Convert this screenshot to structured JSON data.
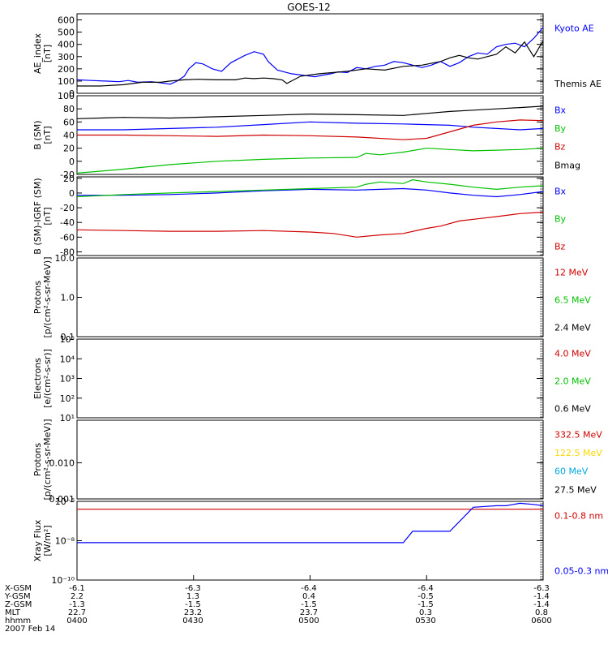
{
  "title": "GOES-12",
  "chart_data": [
    {
      "type": "line",
      "ylabel": "AE_index\n[nT]",
      "ylim": [
        0,
        650
      ],
      "yscale": "linear",
      "yticks": [
        0,
        100,
        200,
        300,
        400,
        500,
        600
      ],
      "ytick_labels": [
        "0",
        "100",
        "200",
        "300",
        "400",
        "500",
        "600"
      ],
      "series": [
        {
          "name": "Kyoto AE",
          "color": "#0000ff",
          "x": [
            0,
            3,
            6,
            9,
            11,
            13,
            16,
            18,
            20,
            21.5,
            23,
            24,
            25.5,
            27,
            29,
            31,
            33,
            36,
            38,
            40,
            41,
            43,
            46,
            48,
            51,
            53,
            54.5,
            56,
            58,
            60,
            62,
            64,
            66,
            68,
            70,
            72,
            74,
            76,
            78,
            80,
            82,
            84,
            86,
            88,
            90,
            92,
            94,
            96,
            98,
            100
          ],
          "y": [
            110,
            105,
            100,
            95,
            105,
            90,
            95,
            85,
            75,
            100,
            140,
            200,
            250,
            240,
            200,
            180,
            250,
            310,
            340,
            320,
            260,
            190,
            160,
            150,
            135,
            150,
            160,
            175,
            170,
            210,
            200,
            220,
            230,
            260,
            250,
            230,
            210,
            230,
            260,
            220,
            250,
            300,
            330,
            320,
            380,
            400,
            410,
            380,
            450,
            540
          ]
        },
        {
          "name": "Themis AE",
          "color": "#000000",
          "x": [
            0,
            5,
            10,
            14,
            18,
            20,
            23,
            26,
            30,
            34,
            36,
            38,
            40,
            42,
            44,
            45,
            46,
            48,
            52,
            55,
            58,
            62,
            66,
            70,
            74,
            78,
            80,
            82,
            84,
            86,
            88,
            90,
            92,
            94,
            96,
            98,
            100
          ],
          "y": [
            60,
            60,
            70,
            90,
            90,
            100,
            110,
            115,
            110,
            110,
            125,
            120,
            125,
            120,
            110,
            80,
            100,
            140,
            160,
            170,
            180,
            200,
            190,
            220,
            230,
            260,
            290,
            310,
            290,
            280,
            300,
            320,
            380,
            330,
            420,
            300,
            430
          ]
        }
      ]
    },
    {
      "type": "line",
      "ylabel": "B (SM)\n[nT]",
      "ylim": [
        -20,
        100
      ],
      "yscale": "linear",
      "yticks": [
        -20,
        0,
        20,
        40,
        60,
        80,
        100
      ],
      "ytick_labels": [
        "-20",
        "0",
        "20",
        "40",
        "60",
        "80",
        "100"
      ],
      "series": [
        {
          "name": "Bx",
          "color": "#0000ff",
          "x": [
            0,
            10,
            20,
            30,
            40,
            50,
            60,
            70,
            80,
            85,
            90,
            95,
            100
          ],
          "y": [
            48,
            48,
            50,
            52,
            56,
            60,
            58,
            57,
            55,
            52,
            50,
            48,
            50
          ]
        },
        {
          "name": "By",
          "color": "#00c000",
          "x": [
            0,
            5,
            10,
            20,
            30,
            40,
            50,
            60,
            62,
            65,
            70,
            75,
            80,
            85,
            90,
            95,
            100
          ],
          "y": [
            -18,
            -15,
            -12,
            -5,
            0,
            3,
            5,
            6,
            12,
            10,
            14,
            20,
            18,
            16,
            17,
            18,
            20
          ]
        },
        {
          "name": "Bz",
          "color": "#d00000",
          "x": [
            0,
            10,
            20,
            30,
            40,
            50,
            60,
            70,
            75,
            80,
            85,
            90,
            95,
            100
          ],
          "y": [
            40,
            40,
            39,
            38,
            40,
            39,
            37,
            33,
            35,
            45,
            55,
            60,
            63,
            62
          ]
        },
        {
          "name": "Bmag",
          "color": "#000000",
          "x": [
            0,
            10,
            20,
            30,
            40,
            50,
            60,
            70,
            75,
            80,
            85,
            90,
            95,
            100
          ],
          "y": [
            65,
            67,
            66,
            68,
            70,
            72,
            71,
            70,
            73,
            76,
            78,
            80,
            82,
            84
          ]
        }
      ]
    },
    {
      "type": "line",
      "ylabel": "B (SM)-IGRF (SM)\n[nT]",
      "ylim": [
        -85,
        22
      ],
      "yscale": "linear",
      "yticks": [
        -80,
        -60,
        -40,
        -20,
        0,
        20
      ],
      "ytick_labels": [
        "-80",
        "-60",
        "-40",
        "-20",
        "0",
        "20"
      ],
      "series": [
        {
          "name": "Bx",
          "color": "#0000ff",
          "x": [
            0,
            10,
            20,
            30,
            40,
            50,
            60,
            65,
            70,
            75,
            80,
            85,
            90,
            95,
            100
          ],
          "y": [
            -3,
            -3,
            -2,
            0,
            3,
            5,
            4,
            5,
            6,
            4,
            0,
            -3,
            -5,
            -2,
            2
          ]
        },
        {
          "name": "By",
          "color": "#00c000",
          "x": [
            0,
            10,
            20,
            30,
            40,
            50,
            60,
            62,
            65,
            70,
            72,
            75,
            80,
            85,
            90,
            95,
            100
          ],
          "y": [
            -5,
            -2,
            0,
            2,
            4,
            6,
            8,
            12,
            15,
            13,
            18,
            15,
            12,
            8,
            5,
            8,
            10
          ]
        },
        {
          "name": "Bz",
          "color": "#d00000",
          "x": [
            0,
            10,
            20,
            30,
            40,
            50,
            55,
            60,
            65,
            70,
            75,
            78,
            82,
            86,
            90,
            95,
            100
          ],
          "y": [
            -50,
            -51,
            -52,
            -52,
            -51,
            -53,
            -55,
            -60,
            -57,
            -55,
            -48,
            -45,
            -38,
            -35,
            -32,
            -28,
            -26
          ]
        }
      ]
    },
    {
      "type": "line",
      "ylabel": "Protons\n[p/(cm²-s-sr-MeV)]",
      "ylim": [
        0.1,
        10.0
      ],
      "yscale": "log",
      "yticks": [
        0.1,
        1.0,
        10.0
      ],
      "ytick_labels": [
        "0.1",
        "1.0",
        "10.0"
      ],
      "series": [
        {
          "name": "12 MeV",
          "color": "#d00000",
          "x": [],
          "y": []
        },
        {
          "name": "6.5 MeV",
          "color": "#00c000",
          "x": [],
          "y": []
        },
        {
          "name": "2.4 MeV",
          "color": "#000000",
          "x": [],
          "y": []
        }
      ]
    },
    {
      "type": "line",
      "ylabel": "Electrons\n[e/(cm²-s-sr)]",
      "ylim": [
        10,
        100000
      ],
      "yscale": "log",
      "yticks": [
        10,
        100,
        1000,
        10000,
        100000
      ],
      "ytick_labels": [
        "10¹",
        "10²",
        "10³",
        "10⁴",
        "10⁵"
      ],
      "series": [
        {
          "name": "4.0 MeV",
          "color": "#d00000",
          "x": [],
          "y": []
        },
        {
          "name": "2.0 MeV",
          "color": "#00c000",
          "x": [],
          "y": []
        },
        {
          "name": "0.6 MeV",
          "color": "#000000",
          "x": [],
          "y": []
        }
      ]
    },
    {
      "type": "line",
      "ylabel": "Protons\n[p/(cm²-s-sr-MeV)]",
      "ylim": [
        0.001,
        0.15
      ],
      "yscale": "log",
      "yticks": [
        0.001,
        0.01
      ],
      "ytick_labels": [
        "0.001",
        "0.010"
      ],
      "series": [
        {
          "name": "332.5 MeV",
          "color": "#d00000",
          "x": [],
          "y": []
        },
        {
          "name": "122.5 MeV",
          "color": "#ffd700",
          "x": [],
          "y": []
        },
        {
          "name": "60 MeV",
          "color": "#00a8e0",
          "x": [],
          "y": []
        },
        {
          "name": "27.5 MeV",
          "color": "#000000",
          "x": [],
          "y": []
        }
      ]
    },
    {
      "type": "line",
      "ylabel": "Xray Flux\n[W/m²]",
      "ylim": [
        1e-10,
        1e-06
      ],
      "yscale": "log",
      "yticks": [
        1e-10,
        1e-08,
        1e-06
      ],
      "ytick_labels": [
        "10⁻¹⁰",
        "10⁻⁸",
        "10⁻⁶"
      ],
      "series": [
        {
          "name": "0.1-0.8 nm",
          "color": "#d00000",
          "x": [
            0,
            100
          ],
          "y": [
            4e-07,
            4e-07
          ]
        },
        {
          "name": "0.05-0.3 nm",
          "color": "#0000ff",
          "x": [
            0,
            20,
            40,
            55,
            57,
            60,
            65,
            70,
            72,
            75,
            80,
            85,
            90,
            92,
            95,
            98,
            100
          ],
          "y": [
            8e-09,
            8e-09,
            8e-09,
            8e-09,
            8e-09,
            8e-09,
            8e-09,
            8e-09,
            3e-08,
            3e-08,
            3e-08,
            5e-07,
            6e-07,
            6e-07,
            8e-07,
            7e-07,
            6e-07
          ]
        }
      ]
    }
  ],
  "ephemeris": {
    "rows": [
      {
        "label": "X-GSM",
        "values": [
          "-6.1",
          "-6.3",
          "-6.4",
          "-6.4",
          "-6.3"
        ]
      },
      {
        "label": "Y-GSM",
        "values": [
          "2.2",
          "1.3",
          "0.4",
          "-0.5",
          "-1.4"
        ]
      },
      {
        "label": "Z-GSM",
        "values": [
          "-1.3",
          "-1.5",
          "-1.5",
          "-1.5",
          "-1.4"
        ]
      },
      {
        "label": "MLT",
        "values": [
          "22.7",
          "23.2",
          "23.7",
          "0.3",
          "0.8"
        ]
      },
      {
        "label": "hhmm",
        "values": [
          "0400",
          "0430",
          "0500",
          "0530",
          "0600"
        ]
      }
    ],
    "date": "2007 Feb 14"
  }
}
